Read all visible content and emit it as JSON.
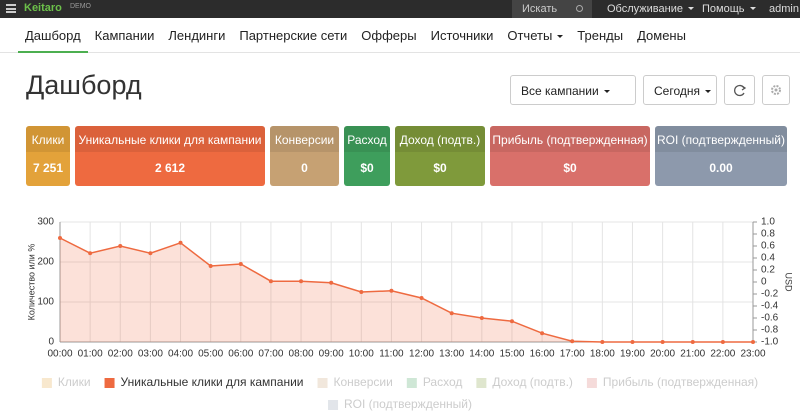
{
  "navbar": {
    "logo": "Keitaro",
    "badge": "DEMO",
    "search": "Искать",
    "menus": [
      "Обслуживание",
      "Помощь"
    ],
    "user": "admin"
  },
  "menu": {
    "items": [
      {
        "label": "Дашборд"
      },
      {
        "label": "Кампании"
      },
      {
        "label": "Лендинги"
      },
      {
        "label": "Партнерские сети"
      },
      {
        "label": "Офферы"
      },
      {
        "label": "Источники"
      },
      {
        "label": "Отчеты",
        "dropdown": true
      },
      {
        "label": "Тренды"
      },
      {
        "label": "Домены"
      }
    ],
    "active": 0
  },
  "page": {
    "title": "Дашборд",
    "campaign_select": "Все кампании",
    "period_select": "Сегодня"
  },
  "cards": [
    {
      "label": "Клики",
      "value": "7 251",
      "color": "#e3a23a"
    },
    {
      "label": "Уникальные клики для кампании",
      "value": "2 612",
      "color": "#ee6a40"
    },
    {
      "label": "Конверсии",
      "value": "0",
      "color": "#c6a173"
    },
    {
      "label": "Расход",
      "value": "$0",
      "color": "#3e9e5c"
    },
    {
      "label": "Доход (подтв.)",
      "value": "$0",
      "color": "#7f9a3b"
    },
    {
      "label": "Прибыль (подтвержденная)",
      "value": "$0",
      "color": "#d9706a"
    },
    {
      "label": "ROI (подтвержденный)",
      "value": "0.00",
      "color": "#8d99ac"
    }
  ],
  "chart_data": {
    "type": "line",
    "y_label": "Количество или %",
    "y2_label": "USD",
    "categories": [
      "00:00",
      "01:00",
      "02:00",
      "03:00",
      "04:00",
      "05:00",
      "06:00",
      "07:00",
      "08:00",
      "09:00",
      "10:00",
      "11:00",
      "12:00",
      "13:00",
      "14:00",
      "15:00",
      "16:00",
      "17:00",
      "18:00",
      "19:00",
      "20:00",
      "21:00",
      "22:00",
      "23:00"
    ],
    "ylim": [
      0,
      300
    ],
    "yticks": [
      0,
      100,
      200,
      300
    ],
    "y2lim": [
      -1,
      1
    ],
    "y2ticks": [
      {
        "value": -1,
        "label": "-1.0"
      },
      -0.8,
      -0.6,
      -0.4,
      -0.2,
      0,
      0.2,
      0.4,
      0.6,
      0.8,
      {
        "value": 1,
        "label": "1.0"
      }
    ],
    "grid": true,
    "series": [
      {
        "name": "Клики",
        "color": "#e3a23a",
        "hidden": true
      },
      {
        "name": "Уникальные клики для кампании",
        "color": "#ee6a40",
        "values": [
          260,
          222,
          240,
          222,
          248,
          190,
          195,
          152,
          152,
          148,
          125,
          128,
          110,
          72,
          60,
          52,
          22,
          2,
          0,
          0,
          0,
          0,
          0,
          0
        ]
      },
      {
        "name": "Конверсии",
        "color": "#c6a173",
        "hidden": true
      },
      {
        "name": "Расход",
        "color": "#3e9e5c",
        "hidden": true
      },
      {
        "name": "Доход (подтв.)",
        "color": "#7f9a3b",
        "hidden": true
      },
      {
        "name": "Прибыль (подтвержденная)",
        "color": "#d9706a",
        "hidden": true
      },
      {
        "name": "ROI (подтвержденный)",
        "color": "#8d99ac",
        "hidden": true
      }
    ]
  }
}
